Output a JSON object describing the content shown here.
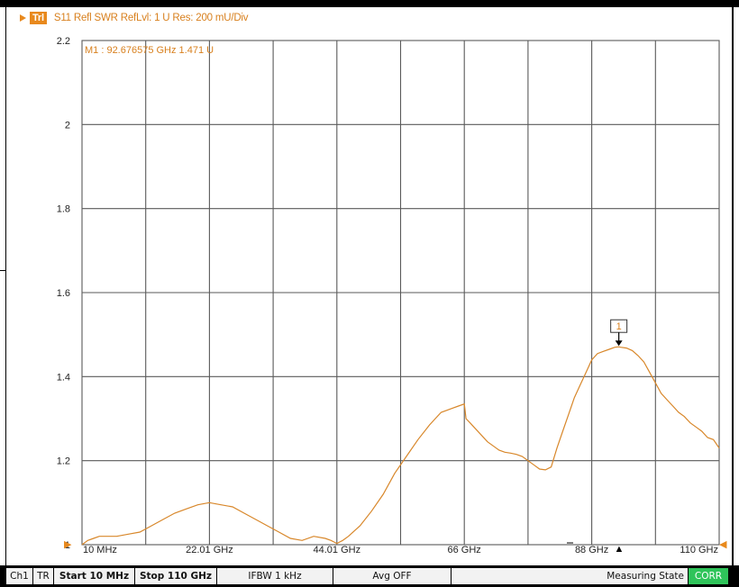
{
  "trace": {
    "badge": "Trl",
    "header": "S11 Refl SWR RefLvl: 1  U Res: 200 mU/Div"
  },
  "chart_data": {
    "type": "line",
    "title": "S11 Refl SWR RefLvl: 1  U Res: 200 mU/Div",
    "xlabel": "",
    "ylabel": "",
    "xlim": [
      0.01,
      110
    ],
    "ylim": [
      1,
      2.2
    ],
    "grid": true,
    "y_ticks": [
      "2.2",
      "2",
      "1.8",
      "1.6",
      "1.4",
      "1.2",
      "1"
    ],
    "x_ticks": [
      {
        "x": 0.01,
        "label": "10 MHz"
      },
      {
        "x": 22.01,
        "label": "22.01 GHz"
      },
      {
        "x": 44.01,
        "label": "44.01 GHz"
      },
      {
        "x": 66,
        "label": "66 GHz"
      },
      {
        "x": 88,
        "label": "88 GHz"
      },
      {
        "x": 110,
        "label": "110 GHz"
      }
    ],
    "marker": {
      "id": "1",
      "label": "M1  :   92.676575 GHz  1.471  U",
      "x": 92.676575,
      "y": 1.471
    },
    "colors": {
      "trace": "#d8872a",
      "grid": "#5a5a5a",
      "marker": "#e8891d"
    },
    "series": [
      {
        "x": [
          0.01,
          1,
          2,
          3,
          4,
          5,
          6,
          8,
          10,
          12,
          14,
          16,
          18,
          20,
          22,
          24,
          26,
          28,
          30,
          32,
          34,
          36,
          38,
          40,
          42,
          43,
          44,
          45,
          46,
          48,
          50,
          52,
          54,
          56,
          58,
          60,
          61,
          62,
          63,
          64,
          65,
          66,
          66.3,
          67,
          68,
          69,
          70,
          71,
          72,
          73,
          74,
          75,
          76,
          77,
          78,
          79,
          80,
          81,
          82,
          83,
          84,
          85,
          86,
          87,
          88,
          89,
          90,
          91,
          92,
          92.68,
          93,
          94,
          95,
          96,
          97,
          98,
          99,
          100,
          101,
          102,
          103,
          104,
          105,
          106,
          107,
          108,
          109,
          110
        ],
        "y": [
          1.0,
          1.01,
          1.015,
          1.02,
          1.02,
          1.02,
          1.02,
          1.025,
          1.03,
          1.045,
          1.06,
          1.075,
          1.085,
          1.095,
          1.1,
          1.095,
          1.09,
          1.075,
          1.06,
          1.045,
          1.03,
          1.015,
          1.01,
          1.02,
          1.015,
          1.01,
          1.003,
          1.01,
          1.02,
          1.045,
          1.08,
          1.12,
          1.17,
          1.21,
          1.25,
          1.285,
          1.3,
          1.315,
          1.32,
          1.325,
          1.33,
          1.335,
          1.3,
          1.29,
          1.275,
          1.26,
          1.245,
          1.235,
          1.225,
          1.22,
          1.218,
          1.215,
          1.21,
          1.2,
          1.19,
          1.18,
          1.178,
          1.185,
          1.23,
          1.27,
          1.31,
          1.35,
          1.38,
          1.41,
          1.44,
          1.455,
          1.46,
          1.465,
          1.47,
          1.471,
          1.47,
          1.468,
          1.462,
          1.45,
          1.435,
          1.41,
          1.385,
          1.36,
          1.345,
          1.33,
          1.315,
          1.305,
          1.29,
          1.28,
          1.27,
          1.255,
          1.25,
          1.23
        ]
      }
    ]
  },
  "bottom_markers": {
    "start_arrow": "▶",
    "end_arrow": "◀",
    "center_triangle": "▲"
  },
  "status": {
    "ch": "Ch1",
    "tr": "TR",
    "start": "Start 10 MHz",
    "stop": "Stop 110 GHz",
    "ifbw": "IFBW 1 kHz",
    "avg": "Avg OFF",
    "state": "Measuring State",
    "corr": "CORR"
  }
}
